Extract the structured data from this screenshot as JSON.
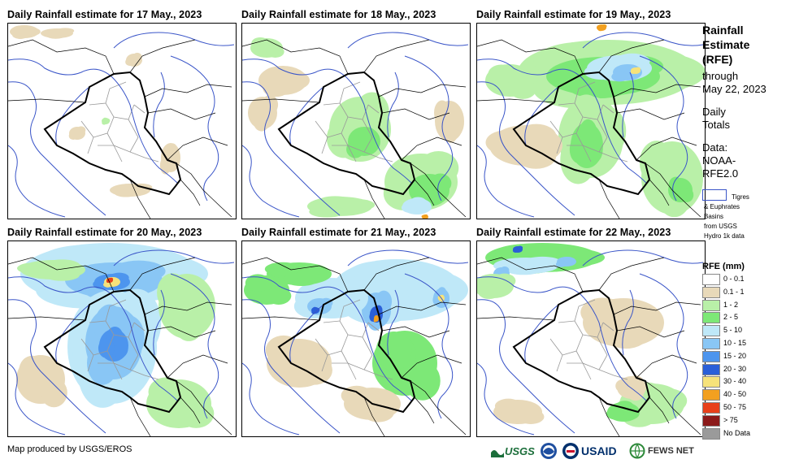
{
  "panels": [
    {
      "title": "Daily Rainfall estimate for 17 May., 2023"
    },
    {
      "title": "Daily Rainfall estimate for 18 May., 2023"
    },
    {
      "title": "Daily Rainfall estimate for 19 May., 2023"
    },
    {
      "title": "Daily Rainfall estimate for 20 May., 2023"
    },
    {
      "title": "Daily Rainfall estimate for 21 May., 2023"
    },
    {
      "title": "Daily Rainfall estimate for 22 May., 2023"
    }
  ],
  "sidebar": {
    "title_lines": [
      "Rainfall",
      "Estimate",
      "(RFE)"
    ],
    "through": "through",
    "date": "May 22, 2023",
    "daily": "Daily",
    "totals": "Totals",
    "data_label": "Data:",
    "source_1": "NOAA-",
    "source_2": "RFE2.0",
    "basin_1": "Tigres",
    "basin_2": "& Euphrates",
    "basin_3": "Basins",
    "basin_4": "from USGS",
    "basin_5": "Hydro 1k data"
  },
  "legend": {
    "title": "RFE (mm)",
    "items": [
      {
        "label": "0 - 0.1",
        "color": "#ffffff"
      },
      {
        "label": "0.1 - 1",
        "color": "#e8d9b9"
      },
      {
        "label": "1 - 2",
        "color": "#b9f0a8"
      },
      {
        "label": "2 - 5",
        "color": "#7de877"
      },
      {
        "label": "5 - 10",
        "color": "#bfe8f8"
      },
      {
        "label": "10 - 15",
        "color": "#89c6f5"
      },
      {
        "label": "15 - 20",
        "color": "#4d95ee"
      },
      {
        "label": "20 - 30",
        "color": "#2a5fd8"
      },
      {
        "label": "30 - 40",
        "color": "#f6e27a"
      },
      {
        "label": "40 - 50",
        "color": "#f2a020"
      },
      {
        "label": "50 - 75",
        "color": "#e8401a"
      },
      {
        "label": "> 75",
        "color": "#8c1a1a"
      },
      {
        "label": "No Data",
        "color": "#9a9a9a"
      }
    ]
  },
  "footer": {
    "credit": "Map produced by USGS/EROS"
  },
  "logos": {
    "usgs": "USGS",
    "usaid": "USAID",
    "fewsnet": "FEWS NET"
  },
  "colors": {
    "border": "#000000",
    "river": "#3a55c8",
    "province": "#999999"
  }
}
